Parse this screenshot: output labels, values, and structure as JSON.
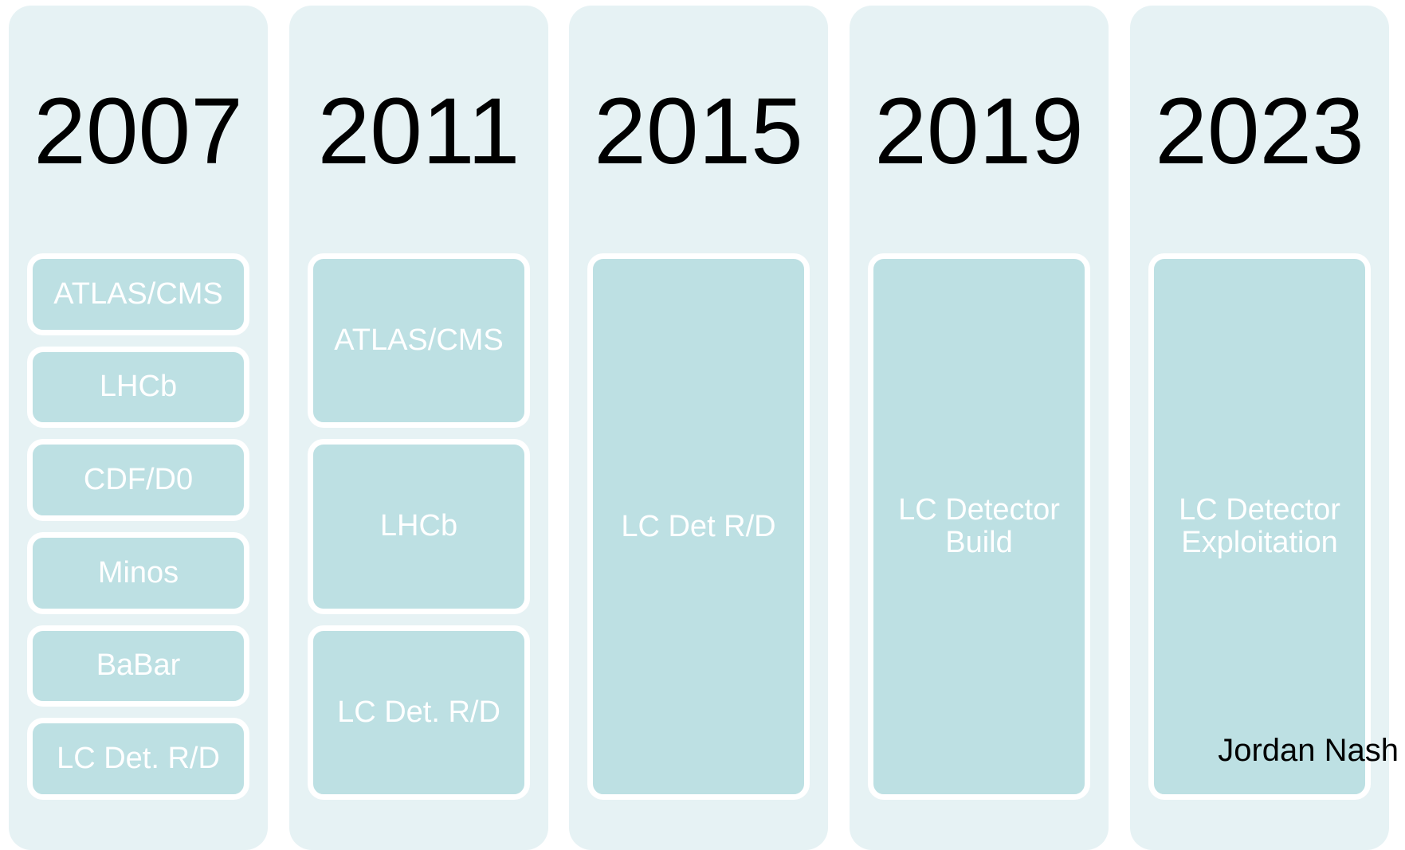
{
  "columns": [
    {
      "year": "2007",
      "items": [
        "ATLAS/CMS",
        "LHCb",
        "CDF/D0",
        "Minos",
        "BaBar",
        "LC Det. R/D"
      ]
    },
    {
      "year": "2011",
      "items": [
        "ATLAS/CMS",
        "LHCb",
        "LC Det. R/D"
      ]
    },
    {
      "year": "2015",
      "items": [
        "LC Det R/D"
      ]
    },
    {
      "year": "2019",
      "items": [
        "LC Detector Build"
      ]
    },
    {
      "year": "2023",
      "items": [
        "LC Detector Exploitation"
      ]
    }
  ],
  "author": "Jordan Nash"
}
